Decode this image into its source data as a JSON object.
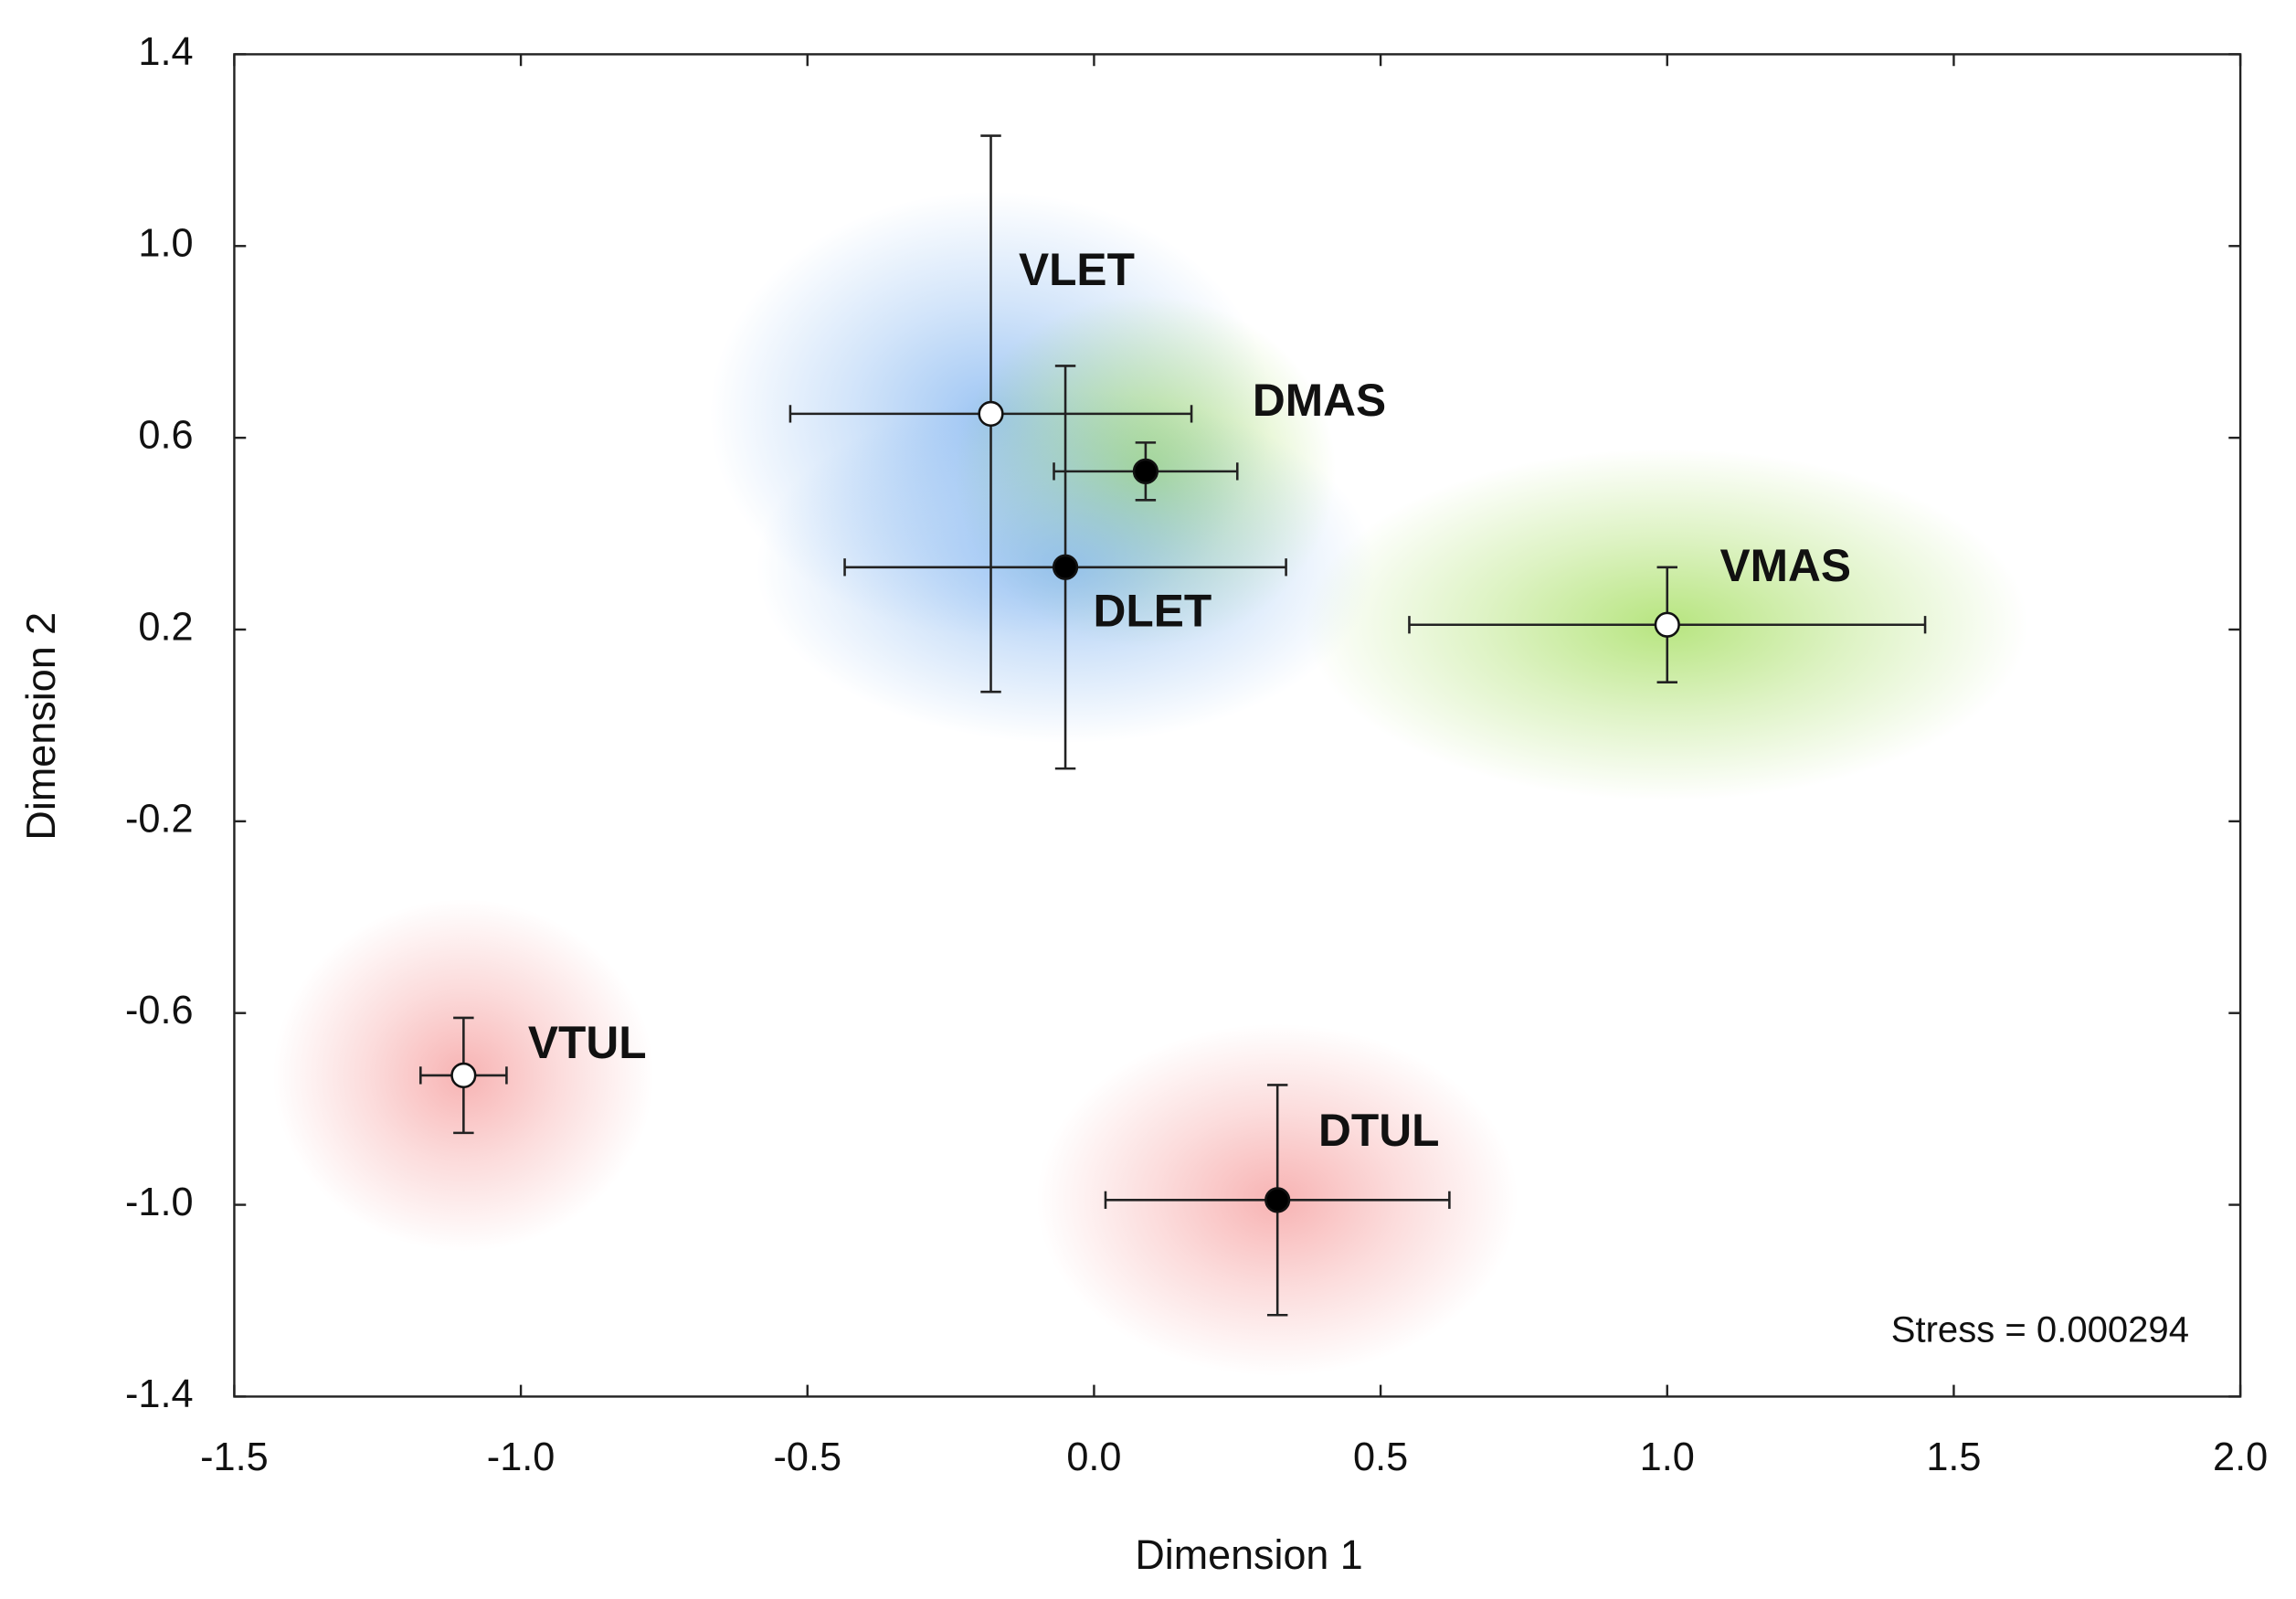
{
  "chart_data": {
    "type": "scatter",
    "xlabel": "Dimension 1",
    "ylabel": "Dimension 2",
    "annotation": "Stress = 0.000294",
    "xlim": [
      -1.5,
      2.0
    ],
    "ylim": [
      -1.4,
      1.4
    ],
    "xticks": [
      -1.5,
      {
        "value": -1,
        "label": "-1.0"
      },
      -0.5,
      {
        "value": 0,
        "label": "0.0"
      },
      0.5,
      {
        "value": 1,
        "label": "1.0"
      },
      1.5,
      {
        "value": 2,
        "label": "2.0"
      }
    ],
    "yticks": [
      1.4,
      {
        "value": 1,
        "label": "1.0"
      },
      0.6,
      0.2,
      -0.2,
      -0.6,
      {
        "value": -1,
        "label": "-1.0"
      },
      -1.4
    ],
    "points": [
      {
        "label": "VLET",
        "x": -0.18,
        "y": 0.65,
        "xerr": 0.35,
        "yerr": 0.58,
        "color": "#ffffff",
        "glow": "#7fb3f0"
      },
      {
        "label": "DMAS",
        "x": 0.09,
        "y": 0.53,
        "xerr": 0.16,
        "yerr": 0.06,
        "color": "#000000",
        "glow": "#9fdc55"
      },
      {
        "label": "DLET",
        "x": -0.05,
        "y": 0.33,
        "xerr": 0.385,
        "yerr": 0.42,
        "color": "#000000",
        "glow": "#7fb3f0"
      },
      {
        "label": "VMAS",
        "x": 1.0,
        "y": 0.21,
        "xerr": 0.45,
        "yerr": 0.12,
        "color": "#ffffff",
        "glow": "#9fdc55"
      },
      {
        "label": "VTUL",
        "x": -1.1,
        "y": -0.73,
        "xerr": 0.075,
        "yerr": 0.12,
        "color": "#ffffff",
        "glow": "#f59a9a"
      },
      {
        "label": "DTUL",
        "x": 0.32,
        "y": -0.99,
        "xerr": 0.3,
        "yerr": 0.24,
        "color": "#000000",
        "glow": "#f59a9a"
      }
    ]
  }
}
